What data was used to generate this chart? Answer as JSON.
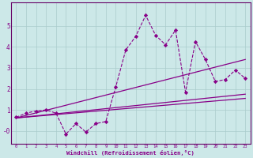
{
  "xlabel": "Windchill (Refroidissement éolien,°C)",
  "background_color": "#cce8e8",
  "line_color": "#880088",
  "x": [
    0,
    1,
    2,
    3,
    4,
    5,
    6,
    7,
    8,
    9,
    10,
    11,
    12,
    13,
    14,
    15,
    16,
    17,
    18,
    19,
    20,
    21,
    22,
    23
  ],
  "y": [
    0.65,
    0.85,
    0.95,
    1.0,
    0.85,
    -0.15,
    0.35,
    -0.05,
    0.35,
    0.45,
    2.1,
    3.85,
    4.5,
    5.5,
    4.55,
    4.1,
    4.8,
    1.85,
    4.25,
    3.4,
    2.35,
    2.45,
    2.9,
    2.5
  ],
  "trend_lines": [
    {
      "x0": 0,
      "x1": 23,
      "y0": 0.62,
      "y1": 3.4
    },
    {
      "x0": 0,
      "x1": 23,
      "y0": 0.62,
      "y1": 1.75
    },
    {
      "x0": 0,
      "x1": 23,
      "y0": 0.62,
      "y1": 1.55
    }
  ],
  "ylim": [
    -0.6,
    6.1
  ],
  "xlim": [
    -0.5,
    23.5
  ],
  "yticks": [
    5,
    4,
    3,
    2,
    1,
    0
  ],
  "ytick_labels": [
    "5",
    "4",
    "3",
    "2",
    "1",
    "-0"
  ],
  "xticks": [
    0,
    1,
    2,
    3,
    4,
    5,
    6,
    7,
    8,
    9,
    10,
    11,
    12,
    13,
    14,
    15,
    16,
    17,
    18,
    19,
    20,
    21,
    22,
    23
  ],
  "grid_color": "#aacccc",
  "spine_color": "#660066"
}
